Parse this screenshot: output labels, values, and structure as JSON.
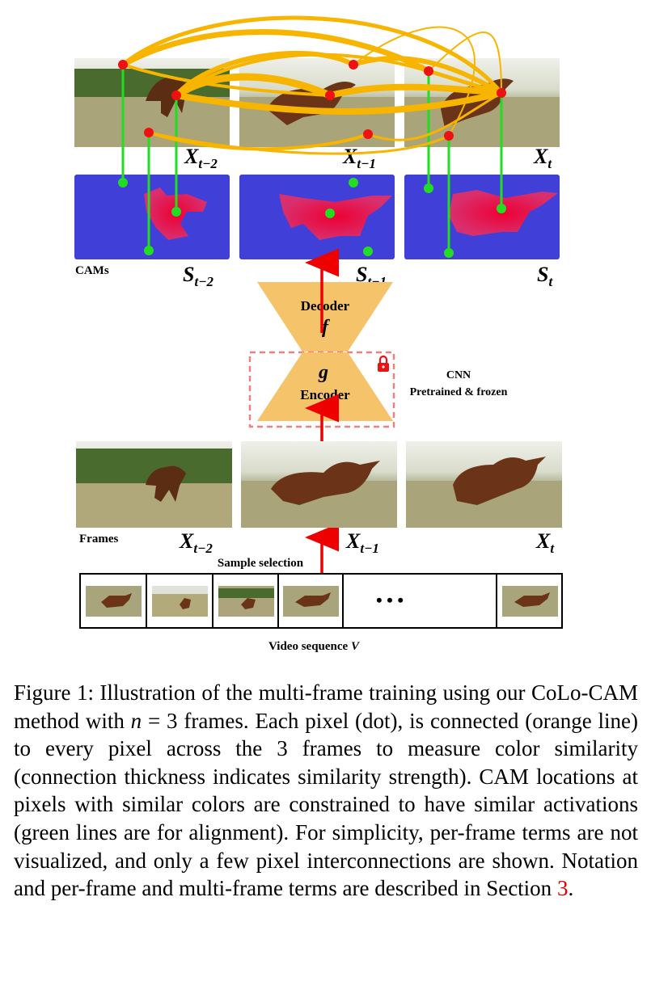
{
  "figure": {
    "top_frames": [
      "X",
      "X",
      "X"
    ],
    "frame_subscripts": [
      "t−2",
      "t−1",
      "t"
    ],
    "cam_symbol": "S",
    "cams_label": "CAMs",
    "decoder_label": "Decoder",
    "decoder_symbol": "f",
    "encoder_symbol": "g",
    "encoder_label": "Encoder",
    "cnn_label": "CNN",
    "cnn_sublabel": "Pretrained & frozen",
    "frames_label": "Frames",
    "sample_selection_label": "Sample selection",
    "ellipsis": "• • •",
    "video_label": "Video sequence",
    "video_symbol": "V",
    "colors": {
      "orange": "#f7b500",
      "green": "#22dd22",
      "red": "#ee1111",
      "cam_bg": "#4040d8",
      "network": "#f4c36a"
    }
  },
  "caption": {
    "prefix": "Figure 1: Illustration of the multi-frame training using our CoLo-CAM method with ",
    "math_n": "n",
    "math_eq": " = 3",
    "middle": " frames. Each pixel (dot), is connected (orange line) to every pixel across the 3 frames to measure color similarity (connection thickness indicates similarity strength). CAM locations at pixels with similar colors are constrained to have similar activations (green lines are for alignment). For simplicity, per-frame terms are not visualized, and only a few pixel interconnections are shown. Notation and per-frame and multi-frame terms are described in Section ",
    "section_ref": "3",
    "suffix": "."
  }
}
